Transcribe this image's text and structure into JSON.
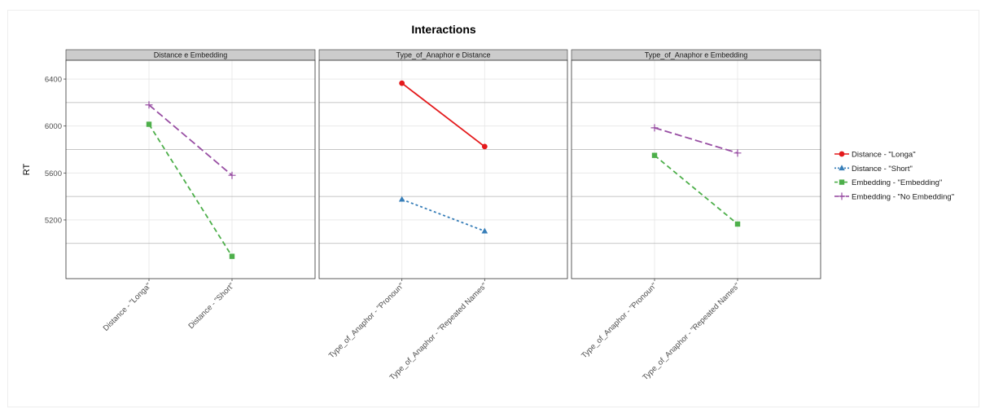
{
  "chart_data": {
    "type": "line",
    "title": "Interactions",
    "ylabel": "RT",
    "xlabel": "",
    "ylim": [
      4700,
      6560
    ],
    "yticks": [
      5200,
      5600,
      6000,
      6400
    ],
    "grid": true,
    "legend_position": "right",
    "panels": [
      {
        "strip": "Distance e Embedding",
        "categories": [
          "Distance - \"Longa\"",
          "Distance - \"Short\""
        ],
        "series": [
          {
            "name": "Embedding - \"Embedding\"",
            "values": [
              6015,
              4890
            ]
          },
          {
            "name": "Embedding - \"No Embedding\"",
            "values": [
              6180,
              5580
            ]
          }
        ]
      },
      {
        "strip": "Type_of_Anaphor e Distance",
        "categories": [
          "Type_of_Anaphor - \"Pronoun\"",
          "Type_of_Anaphor - \"Repeated Names\""
        ],
        "series": [
          {
            "name": "Distance - \"Longa\"",
            "values": [
              6365,
              5825
            ]
          },
          {
            "name": "Distance - \"Short\"",
            "values": [
              5375,
              5105
            ]
          }
        ]
      },
      {
        "strip": "Type_of_Anaphor e Embedding",
        "categories": [
          "Type_of_Anaphor - \"Pronoun\"",
          "Type_of_Anaphor - \"Repeated Names\""
        ],
        "series": [
          {
            "name": "Embedding - \"Embedding\"",
            "values": [
              5750,
              5165
            ]
          },
          {
            "name": "Embedding - \"No Embedding\"",
            "values": [
              5985,
              5770
            ]
          }
        ]
      }
    ],
    "legend": [
      {
        "name": "Distance - \"Longa\"",
        "color": "#e41a1c",
        "shape": "circle",
        "dash": "solid"
      },
      {
        "name": "Distance - \"Short\"",
        "color": "#377eb8",
        "shape": "triangle",
        "dash": "dotted"
      },
      {
        "name": "Embedding - \"Embedding\"",
        "color": "#4daf4a",
        "shape": "square",
        "dash": "dashed"
      },
      {
        "name": "Embedding - \"No Embedding\"",
        "color": "#984ea3",
        "shape": "plus",
        "dash": "longdash"
      }
    ]
  }
}
